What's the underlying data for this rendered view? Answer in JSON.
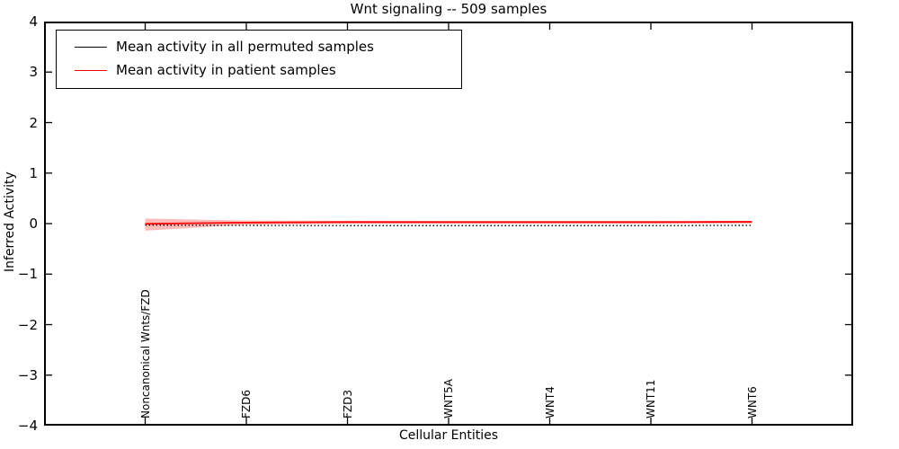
{
  "title": "Wnt signaling -- 509 samples",
  "legend": {
    "position": "upper left",
    "items": [
      {
        "label": "Mean activity in all permuted samples",
        "color": "#000000"
      },
      {
        "label": "Mean activity in patient samples",
        "color": "#ff0000"
      }
    ]
  },
  "chart_data": {
    "type": "line",
    "title": "Wnt signaling -- 509 samples",
    "xlabel": "Cellular Entities",
    "ylabel": "Inferred Activity",
    "ylim": [
      -4,
      4
    ],
    "yticks": [
      4,
      3,
      2,
      1,
      0,
      -1,
      -2,
      -3,
      -4
    ],
    "grid": false,
    "legend_position": "upper left",
    "categories": [
      "Noncanonical Wnts/FZD",
      "FZD6",
      "FZD3",
      "WNT5A",
      "WNT4",
      "WNT11",
      "WNT6"
    ],
    "series": [
      {
        "name": "Mean activity in all permuted samples",
        "color": "#111111",
        "line_style": "dotted",
        "values": [
          -0.03,
          -0.035,
          -0.04,
          -0.04,
          -0.04,
          -0.04,
          -0.035
        ]
      },
      {
        "name": "Mean activity in patient samples",
        "color": "#ff0000",
        "line_style": "solid",
        "values": [
          -0.005,
          0.02,
          0.03,
          0.03,
          0.03,
          0.03,
          0.035
        ]
      }
    ],
    "band": {
      "attached_to": "Mean activity in patient samples",
      "color": "rgba(255,0,0,0.27)",
      "upper": [
        0.1,
        0.06,
        0.055,
        0.05,
        0.05,
        0.05,
        0.055
      ],
      "lower": [
        -0.14,
        -0.02,
        -0.005,
        -0.005,
        -0.005,
        -0.005,
        0.0
      ]
    },
    "frame_color": "#000000"
  }
}
